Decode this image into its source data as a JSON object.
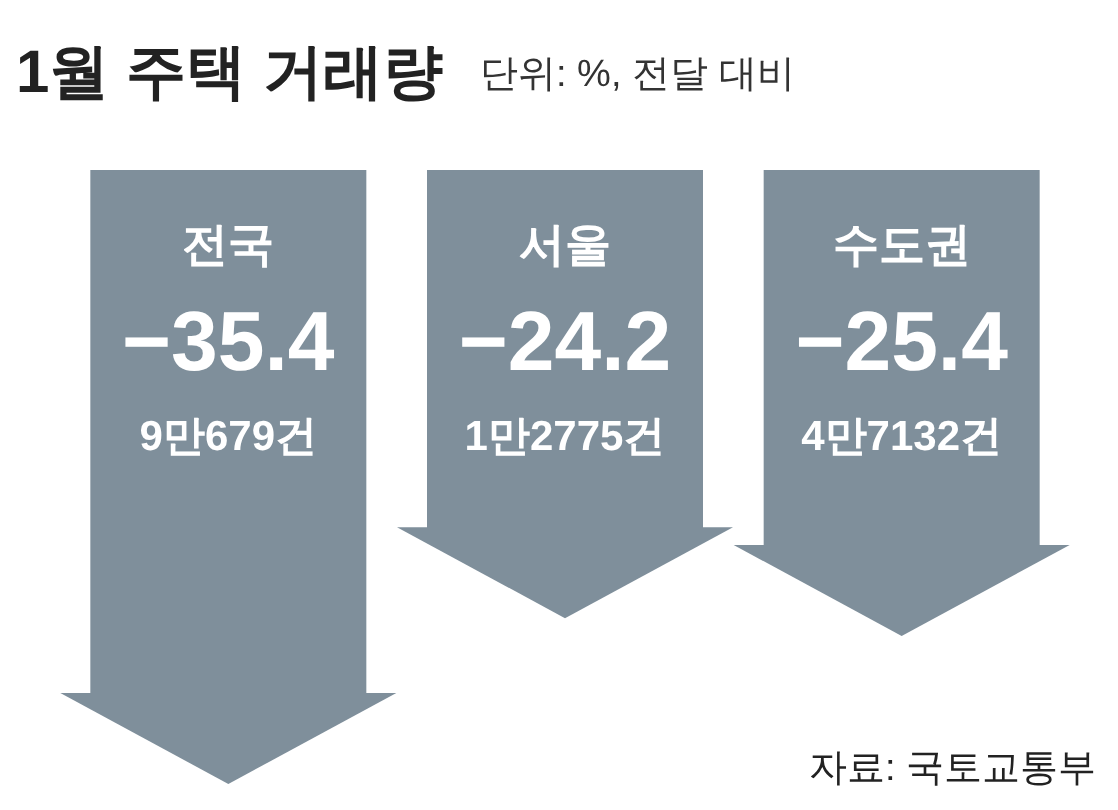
{
  "chart_data": {
    "type": "bar",
    "title": "1월 주택 거래량",
    "subtitle": "단위: %, 전달 대비",
    "categories": [
      "전국",
      "서울",
      "수도권"
    ],
    "values": [
      -35.4,
      -24.2,
      -25.4
    ],
    "value_labels": [
      "−35.4",
      "−24.2",
      "−25.4"
    ],
    "color": "#7f8f9b",
    "annotations": [
      "9만679건",
      "1만2775건",
      "4만7132건",
      "자료: 국토교통부"
    ]
  }
}
